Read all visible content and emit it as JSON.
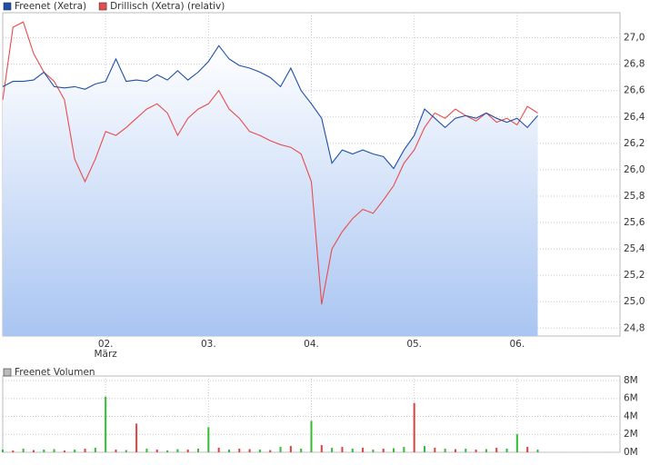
{
  "chart_data": [
    {
      "type": "line",
      "x": [
        1.0,
        1.1,
        1.2,
        1.3,
        1.4,
        1.5,
        1.6,
        1.7,
        1.8,
        1.9,
        2.0,
        2.1,
        2.2,
        2.3,
        2.4,
        2.5,
        2.6,
        2.7,
        2.8,
        2.9,
        3.0,
        3.1,
        3.2,
        3.3,
        3.4,
        3.5,
        3.6,
        3.7,
        3.8,
        3.9,
        4.0,
        4.1,
        4.2,
        4.3,
        4.4,
        4.5,
        4.6,
        4.7,
        4.8,
        4.9,
        5.0,
        5.1,
        5.2,
        5.3,
        5.4,
        5.5,
        5.6,
        5.7,
        5.8,
        5.9,
        6.0,
        6.1,
        6.2
      ],
      "series": [
        {
          "name": "Freenet (Xetra)",
          "color": "#1f4fa8",
          "area": true,
          "values": [
            26.63,
            26.67,
            26.67,
            26.68,
            26.74,
            26.63,
            26.62,
            26.63,
            26.61,
            26.65,
            26.67,
            26.84,
            26.67,
            26.68,
            26.67,
            26.72,
            26.68,
            26.75,
            26.68,
            26.74,
            26.82,
            26.94,
            26.84,
            26.79,
            26.77,
            26.74,
            26.7,
            26.63,
            26.77,
            26.6,
            26.5,
            26.39,
            26.05,
            26.15,
            26.12,
            26.15,
            26.12,
            26.1,
            26.01,
            26.15,
            26.26,
            26.46,
            26.39,
            26.32,
            26.39,
            26.41,
            26.39,
            26.43,
            26.39,
            26.36,
            26.39,
            26.32,
            26.41
          ]
        },
        {
          "name": "Drillisch (Xetra) (relativ)",
          "color": "#e84c4c",
          "area": false,
          "values": [
            26.53,
            27.08,
            27.12,
            26.88,
            26.74,
            26.67,
            26.53,
            26.08,
            25.91,
            26.08,
            26.29,
            26.26,
            26.32,
            26.39,
            26.46,
            26.5,
            26.43,
            26.26,
            26.39,
            26.46,
            26.5,
            26.6,
            26.46,
            26.39,
            26.29,
            26.26,
            26.22,
            26.19,
            26.17,
            26.12,
            25.91,
            24.98,
            25.4,
            25.53,
            25.63,
            25.7,
            25.67,
            25.77,
            25.88,
            26.05,
            26.15,
            26.32,
            26.43,
            26.39,
            26.46,
            26.41,
            26.37,
            26.43,
            26.36,
            26.39,
            26.34,
            26.48,
            26.43
          ]
        }
      ],
      "xlim": [
        1,
        7
      ],
      "xticks": [
        {
          "value": 2,
          "label": "02."
        },
        {
          "value": 3,
          "label": "03."
        },
        {
          "value": 4,
          "label": "04."
        },
        {
          "value": 5,
          "label": "05."
        },
        {
          "value": 6,
          "label": "06."
        }
      ],
      "month_label": "März",
      "ylim": [
        24.74,
        27.19
      ],
      "yticks": [
        {
          "value": 24.8,
          "label": "24,8"
        },
        {
          "value": 25.0,
          "label": "25,0"
        },
        {
          "value": 25.2,
          "label": "25,2"
        },
        {
          "value": 25.4,
          "label": "25,4"
        },
        {
          "value": 25.6,
          "label": "25,6"
        },
        {
          "value": 25.8,
          "label": "25,8"
        },
        {
          "value": 26.0,
          "label": "26,0"
        },
        {
          "value": 26.2,
          "label": "26,2"
        },
        {
          "value": 26.4,
          "label": "26,4"
        },
        {
          "value": 26.6,
          "label": "26,6"
        },
        {
          "value": 26.8,
          "label": "26,8"
        },
        {
          "value": 27.0,
          "label": "27,0"
        }
      ],
      "grid": true
    },
    {
      "type": "bar",
      "x": [
        1.0,
        1.1,
        1.2,
        1.3,
        1.4,
        1.5,
        1.6,
        1.7,
        1.8,
        1.9,
        2.0,
        2.1,
        2.2,
        2.3,
        2.4,
        2.5,
        2.6,
        2.7,
        2.8,
        2.9,
        3.0,
        3.1,
        3.2,
        3.3,
        3.4,
        3.5,
        3.6,
        3.7,
        3.8,
        3.9,
        4.0,
        4.1,
        4.2,
        4.3,
        4.4,
        4.5,
        4.6,
        4.7,
        4.8,
        4.9,
        5.0,
        5.1,
        5.2,
        5.3,
        5.4,
        5.5,
        5.6,
        5.7,
        5.8,
        5.9,
        6.0,
        6.1,
        6.2
      ],
      "series": [
        {
          "name": "Freenet Volumen",
          "color": "#bbbbbb",
          "values": [
            300000,
            200000,
            400000,
            250000,
            300000,
            350000,
            200000,
            300000,
            400000,
            500000,
            6200000,
            300000,
            250000,
            3200000,
            400000,
            300000,
            200000,
            350000,
            300000,
            400000,
            2800000,
            500000,
            300000,
            400000,
            350000,
            300000,
            250000,
            600000,
            700000,
            400000,
            3500000,
            800000,
            500000,
            600000,
            400000,
            500000,
            300000,
            400000,
            450000,
            600000,
            5500000,
            700000,
            500000,
            400000,
            350000,
            400000,
            300000,
            350000,
            500000,
            400000,
            2000000,
            600000,
            300000
          ],
          "colors": [
            "#33bb33",
            "#e04040",
            "#33bb33",
            "#e04040",
            "#33bb33",
            "#33bb33",
            "#e04040",
            "#33bb33",
            "#e04040",
            "#33bb33",
            "#33bb33",
            "#e04040",
            "#33bb33",
            "#e04040",
            "#33bb33",
            "#e04040",
            "#33bb33",
            "#33bb33",
            "#e04040",
            "#33bb33",
            "#33bb33",
            "#e04040",
            "#33bb33",
            "#e04040",
            "#e04040",
            "#33bb33",
            "#e04040",
            "#33bb33",
            "#e04040",
            "#33bb33",
            "#33bb33",
            "#e04040",
            "#33bb33",
            "#e04040",
            "#33bb33",
            "#e04040",
            "#33bb33",
            "#e04040",
            "#33bb33",
            "#33bb33",
            "#e04040",
            "#33bb33",
            "#e04040",
            "#33bb33",
            "#e04040",
            "#33bb33",
            "#e04040",
            "#33bb33",
            "#e04040",
            "#33bb33",
            "#33bb33",
            "#e04040",
            "#33bb33"
          ]
        }
      ],
      "xlim": [
        1,
        7
      ],
      "xticks": [
        2,
        3,
        4,
        5,
        6
      ],
      "ylim": [
        0,
        8500000
      ],
      "yticks": [
        {
          "value": 0,
          "label": "0M"
        },
        {
          "value": 2000000,
          "label": "2M"
        },
        {
          "value": 4000000,
          "label": "4M"
        },
        {
          "value": 6000000,
          "label": "6M"
        },
        {
          "value": 8000000,
          "label": "8M"
        }
      ],
      "grid": true
    }
  ]
}
